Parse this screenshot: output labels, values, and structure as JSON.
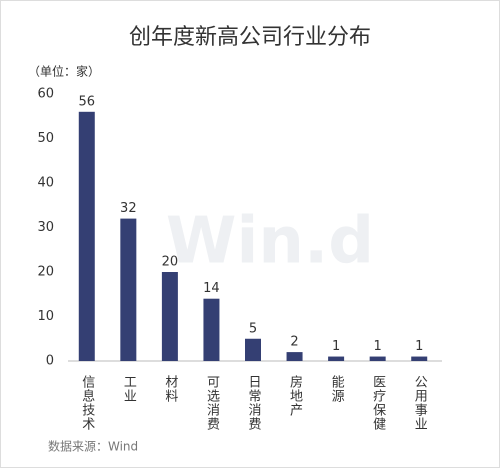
{
  "chart_data": {
    "type": "bar",
    "title": "创年度新高公司行业分布",
    "unit_label": "（单位：家）",
    "categories": [
      "信息技术",
      "工业",
      "材料",
      "可选消费",
      "日常消费",
      "房地产",
      "能源",
      "医疗保健",
      "公用事业"
    ],
    "values": [
      56,
      32,
      20,
      14,
      5,
      2,
      1,
      1,
      1
    ],
    "color": "#343f73",
    "ylim": [
      0,
      60
    ],
    "yticks": [
      0,
      10,
      20,
      30,
      40,
      50,
      60
    ],
    "grid": false,
    "source": "数据来源：Wind",
    "watermark": "Win.d"
  }
}
